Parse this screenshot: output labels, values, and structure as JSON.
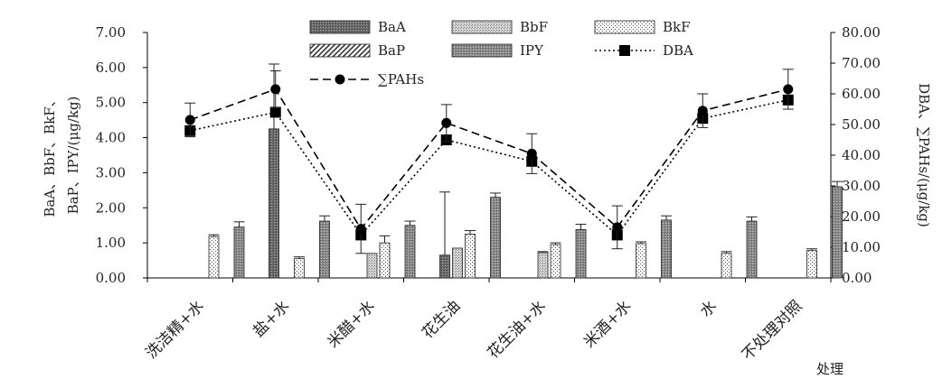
{
  "chart_data": {
    "type": "bar",
    "categories": [
      "洗洁精+水",
      "盐+水",
      "米醋+水",
      "花生油",
      "花生油+水",
      "米酒+水",
      "水",
      "不处理对照"
    ],
    "xlabel": "处理",
    "ylabel_left_lines": [
      "BaA、BbF、BkF、",
      "BaP、IPY/(μg/kg)"
    ],
    "ylabel_right": "DBA、∑PAHs/(μg/kg)",
    "ylim_left": [
      0,
      7
    ],
    "ylim_right": [
      0,
      80
    ],
    "yticks_left": [
      "0.00",
      "1.00",
      "2.00",
      "3.00",
      "4.00",
      "5.00",
      "6.00",
      "7.00"
    ],
    "yticks_right": [
      "0.00",
      "10.00",
      "20.00",
      "30.00",
      "40.00",
      "50.00",
      "60.00",
      "70.00",
      "80.00"
    ],
    "bar_series": [
      {
        "name": "BaA",
        "pattern": "pat-baa",
        "values": [
          0,
          4.25,
          0,
          0.65,
          0,
          0,
          0,
          0
        ],
        "errors": [
          0,
          1.85,
          0,
          1.8,
          0,
          0,
          0,
          0
        ]
      },
      {
        "name": "BbF",
        "pattern": "pat-bbf",
        "values": [
          0,
          0,
          0.7,
          0.85,
          0.72,
          0,
          0,
          0
        ],
        "errors": [
          0,
          0,
          0,
          0,
          0.03,
          0,
          0,
          0
        ]
      },
      {
        "name": "BkF",
        "pattern": "pat-bkf",
        "values": [
          1.18,
          0.55,
          1.0,
          1.25,
          0.95,
          0.98,
          0.7,
          0.78
        ],
        "errors": [
          0.05,
          0.05,
          0.2,
          0.1,
          0.05,
          0.05,
          0.05,
          0.05
        ]
      },
      {
        "name": "BaP",
        "pattern": "pat-bap",
        "values": [
          0,
          0,
          0,
          0,
          0,
          0,
          0,
          0
        ],
        "errors": [
          0,
          0,
          0,
          0,
          0,
          0,
          0,
          0
        ]
      },
      {
        "name": "IPY",
        "pattern": "pat-ipy",
        "values": [
          1.45,
          1.62,
          1.5,
          2.3,
          1.38,
          1.65,
          1.62,
          2.6
        ],
        "errors": [
          0.15,
          0.15,
          0.12,
          0.12,
          0.15,
          0.12,
          0.12,
          0.15
        ]
      }
    ],
    "line_series": [
      {
        "name": "DBA",
        "axis": "right",
        "style": "dotted",
        "marker": "square",
        "values": [
          48,
          54,
          14,
          45,
          38,
          14,
          52,
          58
        ],
        "errors": [
          0,
          0,
          0,
          0,
          0,
          0,
          0,
          0
        ]
      },
      {
        "name": "∑PAHs",
        "axis": "right",
        "style": "dashed",
        "marker": "circle",
        "values": [
          51.5,
          61.5,
          16,
          50.5,
          40.5,
          16.5,
          54.5,
          61.5
        ],
        "errors": [
          5.5,
          6,
          8,
          6,
          6.5,
          7,
          5.5,
          6.5
        ]
      }
    ],
    "legend": {
      "placement": "top-center",
      "rows": [
        [
          "BaA",
          "BbF",
          "BkF"
        ],
        [
          "BaP",
          "IPY",
          "DBA"
        ],
        [
          "∑PAHs"
        ]
      ]
    },
    "grid": false
  }
}
